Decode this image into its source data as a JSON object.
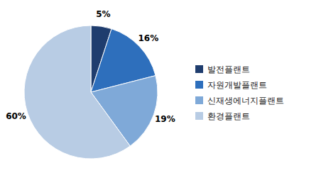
{
  "chart_data": {
    "type": "pie",
    "categories": [
      "발전플랜트",
      "자원개발플랜트",
      "신재생에너지플랜트",
      "환경플랜트"
    ],
    "values": [
      5,
      16,
      19,
      60
    ],
    "value_labels": [
      "5%",
      "16%",
      "19%",
      "60%"
    ],
    "colors": [
      "#1f3d6e",
      "#2e6fbc",
      "#7fa9d8",
      "#b8cce4"
    ],
    "data_labels": true,
    "legend": "right"
  }
}
